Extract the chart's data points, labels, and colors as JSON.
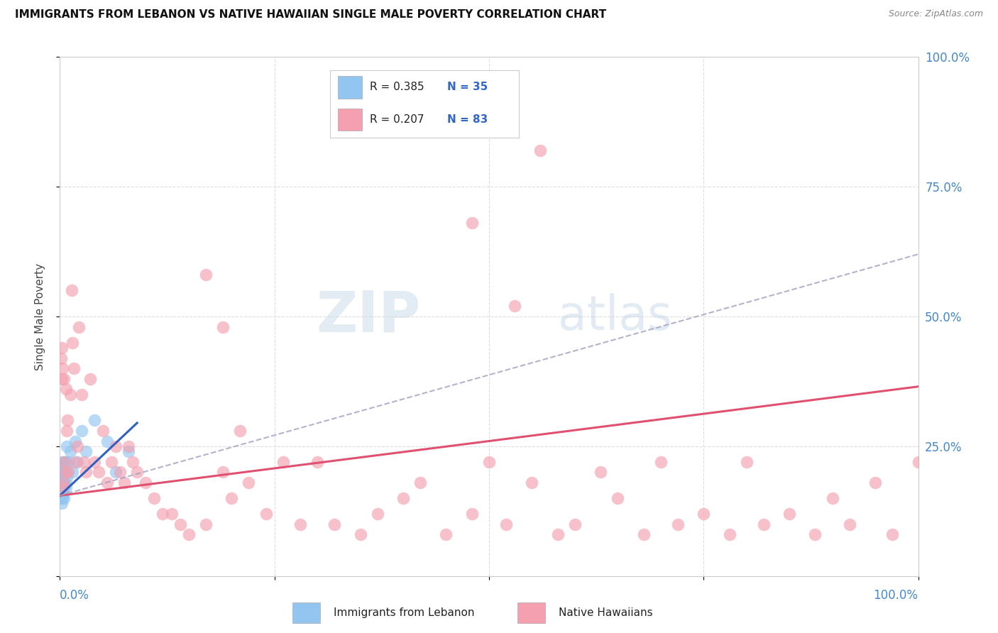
{
  "title": "IMMIGRANTS FROM LEBANON VS NATIVE HAWAIIAN SINGLE MALE POVERTY CORRELATION CHART",
  "source": "Source: ZipAtlas.com",
  "ylabel": "Single Male Poverty",
  "legend_r1": "R = 0.385",
  "legend_n1": "N = 35",
  "legend_r2": "R = 0.207",
  "legend_n2": "N = 83",
  "color_blue": "#92C5F0",
  "color_pink": "#F4A0B0",
  "color_blue_line": "#3060C0",
  "color_pink_line": "#E05070",
  "color_dashed": "#A0A0C0",
  "legend_x1": "Immigrants from Lebanon",
  "legend_x2": "Native Hawaiians",
  "background_color": "#ffffff",
  "grid_color": "#dddddd",
  "blue_scatter_x": [
    0.001,
    0.001,
    0.001,
    0.002,
    0.002,
    0.002,
    0.002,
    0.003,
    0.003,
    0.003,
    0.003,
    0.004,
    0.004,
    0.004,
    0.005,
    0.005,
    0.005,
    0.006,
    0.006,
    0.007,
    0.007,
    0.008,
    0.008,
    0.009,
    0.01,
    0.012,
    0.015,
    0.018,
    0.02,
    0.025,
    0.03,
    0.04,
    0.055,
    0.065,
    0.08
  ],
  "blue_scatter_y": [
    0.15,
    0.17,
    0.2,
    0.14,
    0.16,
    0.18,
    0.21,
    0.15,
    0.17,
    0.19,
    0.22,
    0.16,
    0.18,
    0.2,
    0.15,
    0.17,
    0.22,
    0.18,
    0.2,
    0.17,
    0.22,
    0.19,
    0.25,
    0.2,
    0.22,
    0.24,
    0.2,
    0.26,
    0.22,
    0.28,
    0.24,
    0.3,
    0.26,
    0.2,
    0.24
  ],
  "pink_scatter_x": [
    0.001,
    0.002,
    0.002,
    0.003,
    0.003,
    0.004,
    0.005,
    0.005,
    0.006,
    0.007,
    0.008,
    0.009,
    0.01,
    0.012,
    0.014,
    0.015,
    0.016,
    0.018,
    0.02,
    0.022,
    0.025,
    0.028,
    0.03,
    0.035,
    0.04,
    0.045,
    0.05,
    0.055,
    0.06,
    0.065,
    0.07,
    0.075,
    0.08,
    0.085,
    0.09,
    0.1,
    0.11,
    0.12,
    0.13,
    0.14,
    0.15,
    0.17,
    0.19,
    0.2,
    0.22,
    0.24,
    0.26,
    0.28,
    0.3,
    0.32,
    0.35,
    0.37,
    0.4,
    0.42,
    0.45,
    0.48,
    0.5,
    0.52,
    0.55,
    0.58,
    0.6,
    0.63,
    0.65,
    0.68,
    0.7,
    0.72,
    0.75,
    0.78,
    0.8,
    0.82,
    0.85,
    0.88,
    0.9,
    0.92,
    0.95,
    0.97,
    1.0,
    0.53,
    0.56,
    0.48,
    0.17,
    0.19,
    0.21
  ],
  "pink_scatter_y": [
    0.42,
    0.44,
    0.38,
    0.17,
    0.4,
    0.18,
    0.22,
    0.38,
    0.2,
    0.36,
    0.28,
    0.3,
    0.2,
    0.35,
    0.55,
    0.45,
    0.4,
    0.22,
    0.25,
    0.48,
    0.35,
    0.22,
    0.2,
    0.38,
    0.22,
    0.2,
    0.28,
    0.18,
    0.22,
    0.25,
    0.2,
    0.18,
    0.25,
    0.22,
    0.2,
    0.18,
    0.15,
    0.12,
    0.12,
    0.1,
    0.08,
    0.1,
    0.2,
    0.15,
    0.18,
    0.12,
    0.22,
    0.1,
    0.22,
    0.1,
    0.08,
    0.12,
    0.15,
    0.18,
    0.08,
    0.12,
    0.22,
    0.1,
    0.18,
    0.08,
    0.1,
    0.2,
    0.15,
    0.08,
    0.22,
    0.1,
    0.12,
    0.08,
    0.22,
    0.1,
    0.12,
    0.08,
    0.15,
    0.1,
    0.18,
    0.08,
    0.22,
    0.52,
    0.82,
    0.68,
    0.58,
    0.48,
    0.28
  ],
  "blue_line_x": [
    0.0,
    0.09
  ],
  "blue_line_y": [
    0.155,
    0.295
  ],
  "pink_line_x": [
    0.0,
    1.0
  ],
  "pink_line_y": [
    0.155,
    0.365
  ],
  "dashed_line_x": [
    0.0,
    1.0
  ],
  "dashed_line_y": [
    0.155,
    0.62
  ],
  "xlim": [
    0.0,
    1.0
  ],
  "ylim": [
    0.0,
    1.0
  ]
}
